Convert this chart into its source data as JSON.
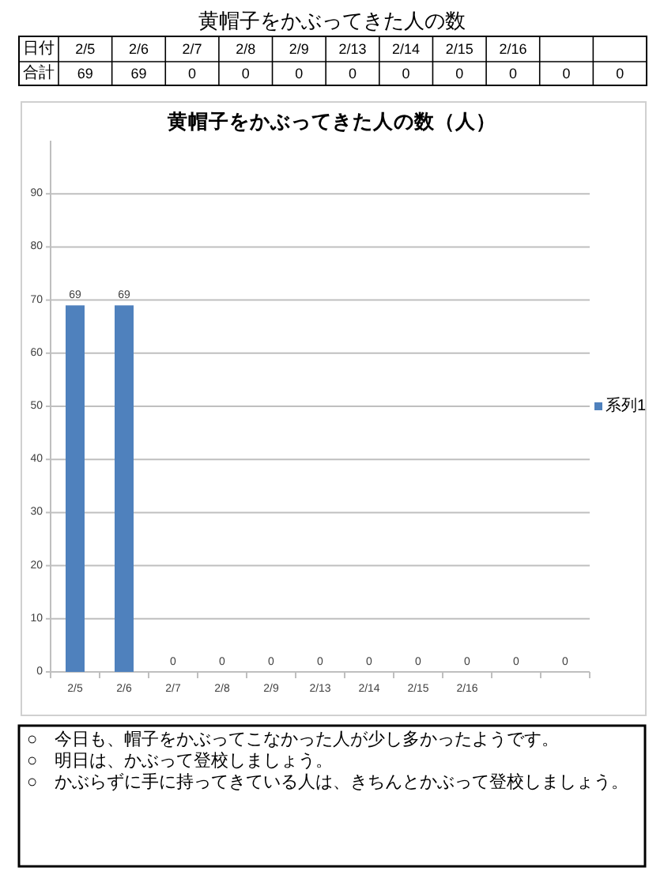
{
  "chart_data": [
    {
      "type": "other",
      "title": "黄帽子をかぶってきた人の数",
      "categories": [
        "2/5",
        "2/6",
        "2/7",
        "2/8",
        "2/9",
        "2/13",
        "2/14",
        "2/15",
        "2/16",
        null,
        null
      ],
      "values": [
        69,
        69,
        0,
        0,
        0,
        0,
        0,
        0,
        0,
        0,
        0
      ],
      "data_labels": true,
      "annotations": [
        "日付",
        "合計"
      ]
    },
    {
      "type": "bar",
      "title": "黄帽子をかぶってきた人の数（人）",
      "categories": [
        "2/5",
        "2/6",
        "2/7",
        "2/8",
        "2/9",
        "2/13",
        "2/14",
        "2/15",
        "2/16",
        null,
        null
      ],
      "series": [
        {
          "name": "系列1",
          "color": "#4f81bd",
          "values": [
            69,
            69,
            0,
            0,
            0,
            0,
            0,
            0,
            0,
            0,
            0
          ]
        }
      ],
      "ylim": [
        0,
        100
      ],
      "yticks": [
        0,
        10,
        20,
        30,
        40,
        50,
        60,
        70,
        80,
        90
      ],
      "grid": "y",
      "legend": "right",
      "data_labels": true,
      "annotations": [
        "○　今日も、帽子をかぶってこなかった人が少し多かったようです。",
        "○　明日は、かぶって登校しましょう。",
        "○　かぶらずに手に持ってきている人は、きちんとかぶって登校しましょう。"
      ]
    }
  ]
}
